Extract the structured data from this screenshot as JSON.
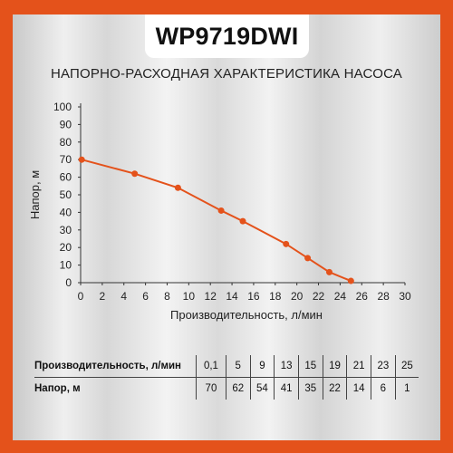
{
  "header": {
    "model": "WP9719DWI",
    "chart_title": "НАПОРНО-РАСХОДНАЯ ХАРАКТЕРИСТИКА НАСОСА"
  },
  "colors": {
    "accent": "#e4521b",
    "line": "#e4521b",
    "text": "#222222"
  },
  "chart_data": {
    "type": "line",
    "title": "НАПОРНО-РАСХОДНАЯ ХАРАКТЕРИСТИКА НАСОСА",
    "xlabel": "Производительность, л/мин",
    "ylabel": "Напор, м",
    "xlim": [
      0,
      30
    ],
    "ylim": [
      0,
      100
    ],
    "xticks": [
      0,
      2,
      4,
      6,
      8,
      10,
      12,
      14,
      16,
      18,
      20,
      22,
      24,
      26,
      28,
      30
    ],
    "yticks": [
      0,
      10,
      20,
      30,
      40,
      50,
      60,
      70,
      80,
      90,
      100
    ],
    "grid": false,
    "series": [
      {
        "x": [
          0.1,
          5,
          9,
          13,
          15,
          19,
          21,
          23,
          25
        ],
        "y": [
          70,
          62,
          54,
          41,
          35,
          22,
          14,
          6,
          1
        ]
      }
    ]
  },
  "table": {
    "rows": [
      {
        "label": "Производительность, л/мин",
        "values": [
          "0,1",
          "5",
          "9",
          "13",
          "15",
          "19",
          "21",
          "23",
          "25"
        ]
      },
      {
        "label": "Напор, м",
        "values": [
          "70",
          "62",
          "54",
          "41",
          "35",
          "22",
          "14",
          "6",
          "1"
        ]
      }
    ]
  }
}
